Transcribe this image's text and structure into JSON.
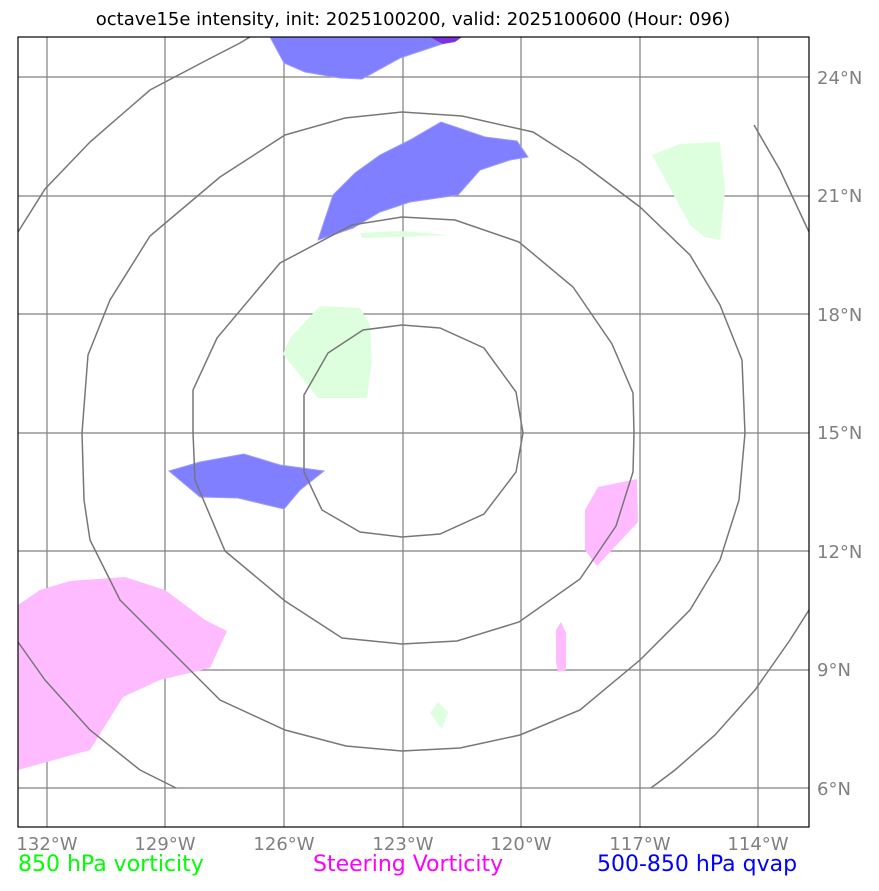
{
  "title": "octave15e intensity, init: 2025100200, valid: 2025100600 (Hour: 096)",
  "axes": {
    "lat_labels": [
      "24°N",
      "21°N",
      "18°N",
      "15°N",
      "12°N",
      "9°N",
      "6°N"
    ],
    "lon_labels": [
      "132°W",
      "129°W",
      "126°W",
      "123°W",
      "120°W",
      "117°W",
      "114°W"
    ],
    "gridline_color": "#808080"
  },
  "legend": {
    "items": [
      {
        "label": "850 hPa vorticity",
        "color": "#00ff00"
      },
      {
        "label": "Steering Vorticity",
        "color": "#ff00ff"
      },
      {
        "label": "500-850 hPa qvap",
        "color": "#0000ff"
      }
    ]
  },
  "colors": {
    "vorticity_fill": "#ddffdd",
    "steering_fill": "#ffbbff",
    "qvap_fill": "#7f7fff",
    "qvap_dark": "#7a33dd",
    "range_ring": "#777777"
  }
}
